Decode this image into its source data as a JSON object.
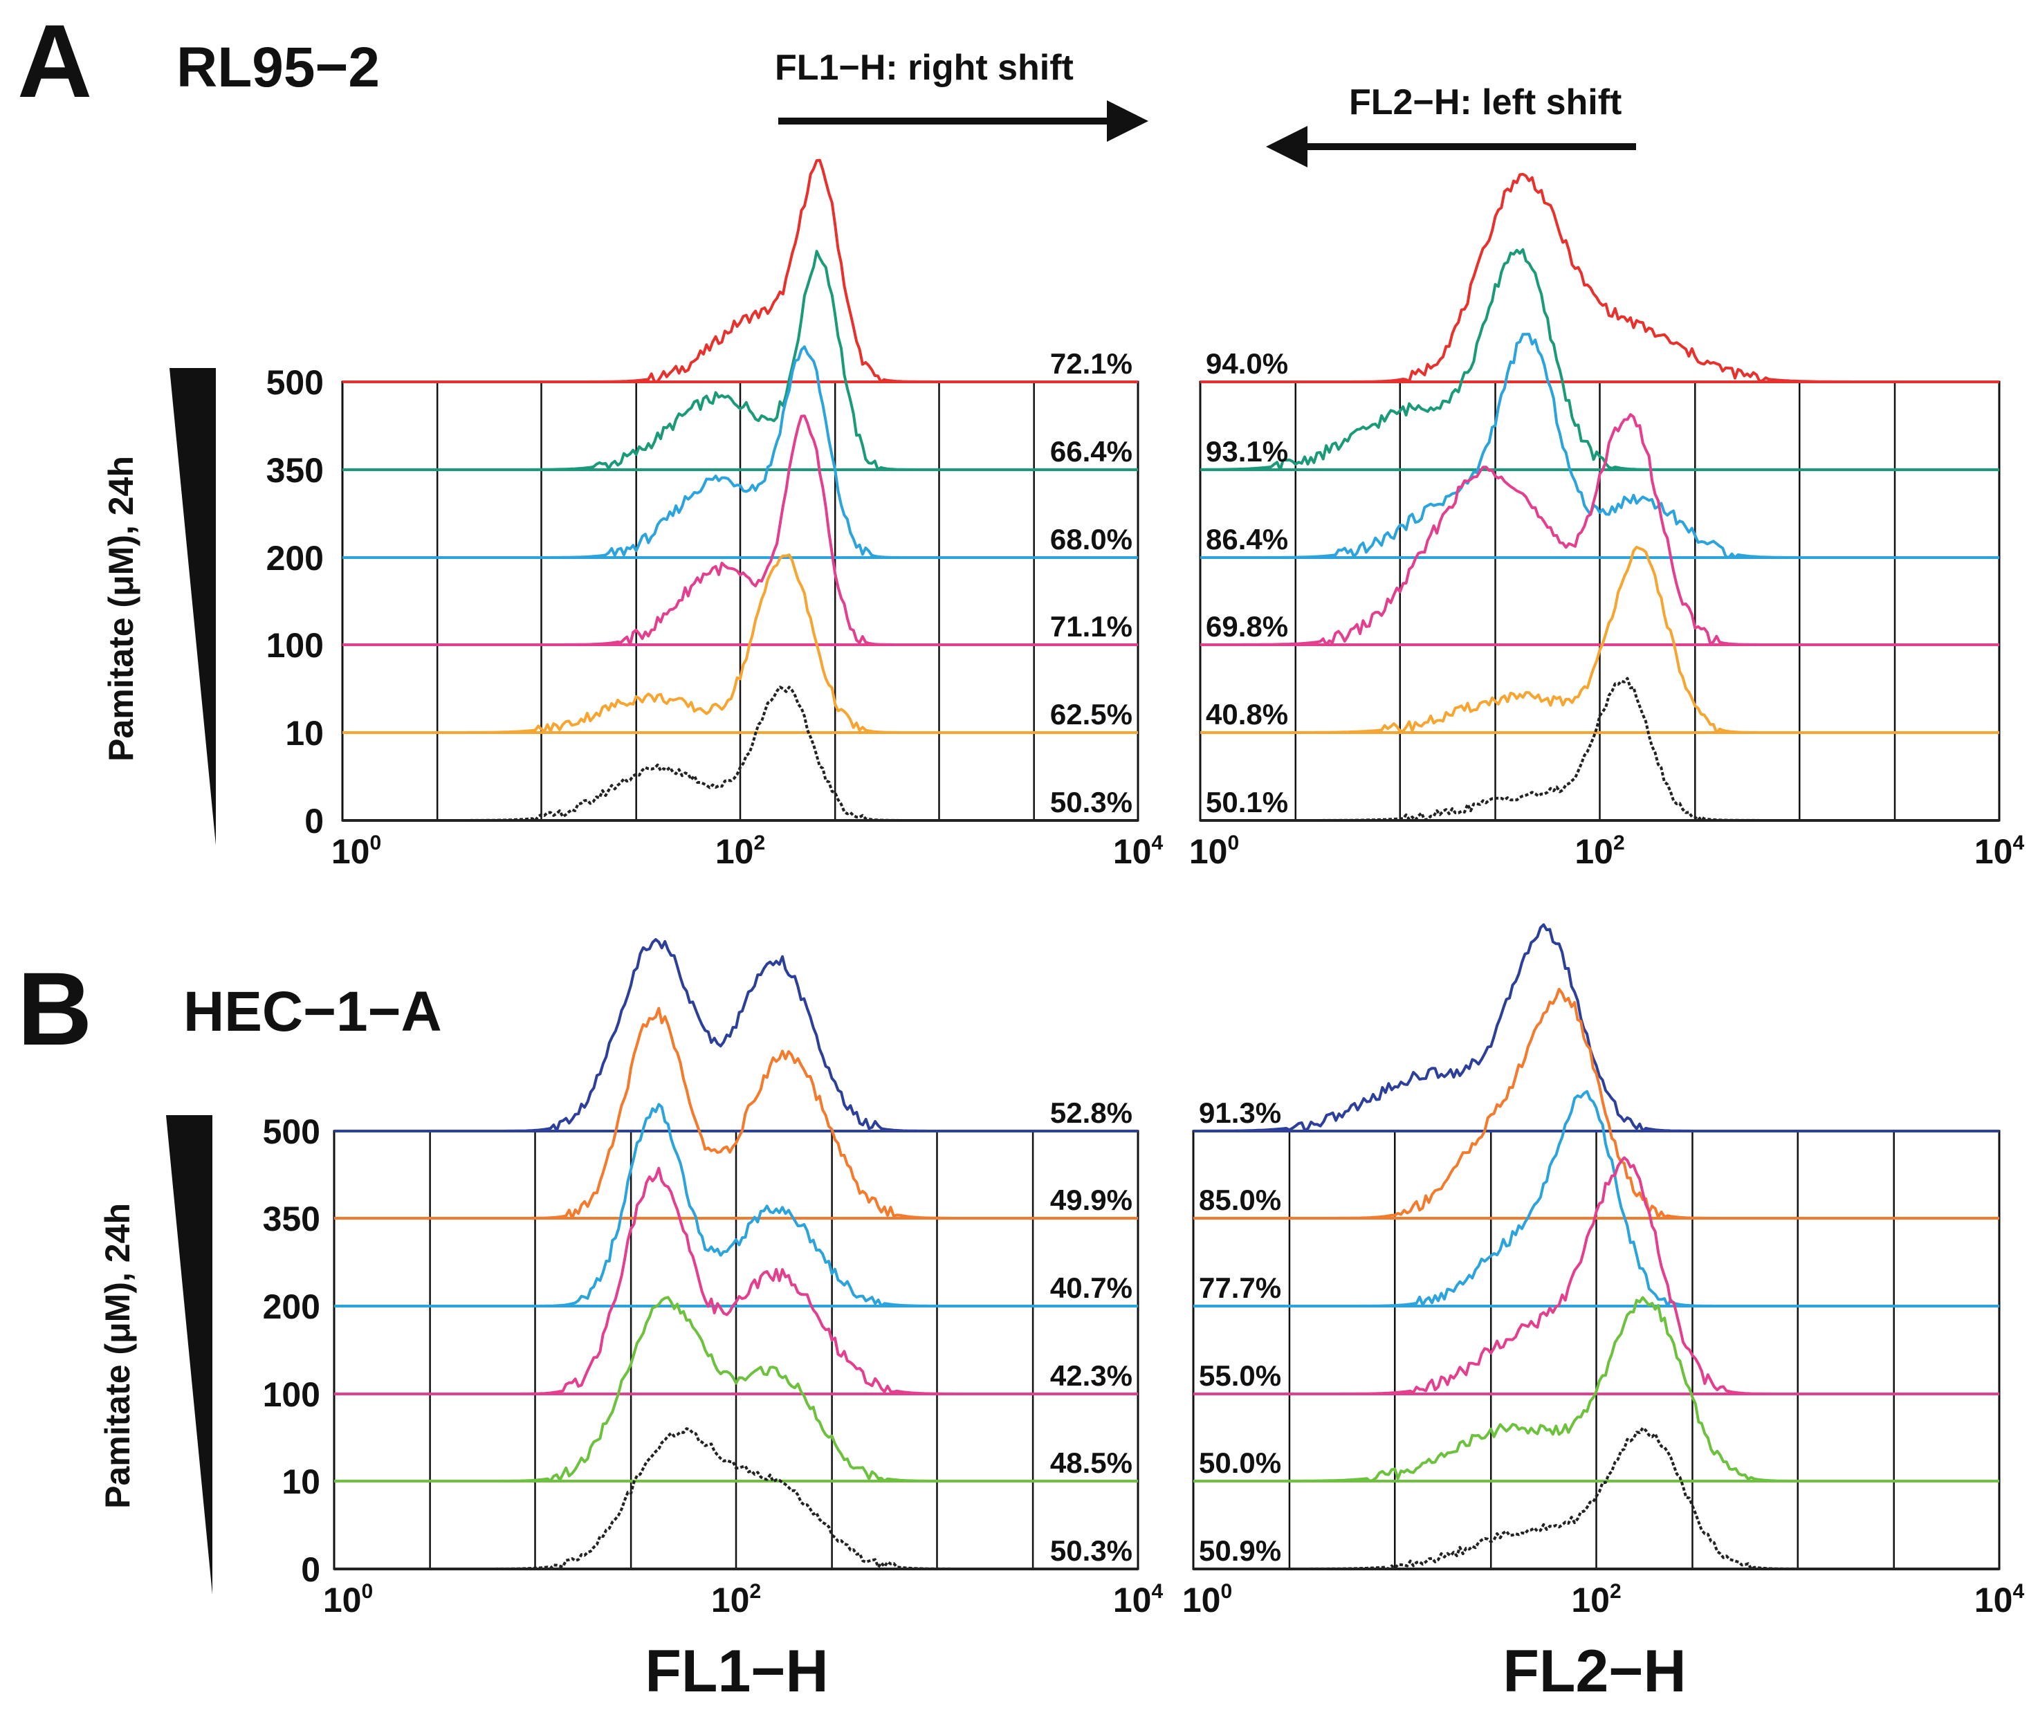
{
  "figure": {
    "x_axis_labels": [
      "FL1−H",
      "FL2−H"
    ],
    "shift_annotations": [
      {
        "text": "FL1−H: right shift",
        "direction": "right"
      },
      {
        "text": "FL2−H: left shift",
        "direction": "left"
      }
    ]
  },
  "chart_data": [
    {
      "type": "histogram-overlay",
      "panel": "A",
      "cell_line": "RL95−2",
      "channel": "FL1−H",
      "ylabel": "Pamitate (μM), 24h",
      "row_labels": [
        "500",
        "350",
        "200",
        "100",
        "10",
        "0"
      ],
      "x_ticks": [
        "10^0",
        "10^2",
        "10^4"
      ],
      "xlim_log10": [
        0,
        4
      ],
      "series": [
        {
          "name": "500",
          "color": "#e8312d",
          "percent": "72.1%",
          "peaks": [
            [
              2.1,
              0.35,
              0.22
            ],
            [
              2.4,
              1.0,
              0.1
            ]
          ]
        },
        {
          "name": "350",
          "color": "#1a9a79",
          "percent": "66.4%",
          "peaks": [
            [
              1.9,
              0.35,
              0.25
            ],
            [
              2.4,
              1.0,
              0.1
            ]
          ]
        },
        {
          "name": "200",
          "color": "#2ba3dc",
          "percent": "68.0%",
          "peaks": [
            [
              1.9,
              0.4,
              0.22
            ],
            [
              2.33,
              1.0,
              0.11
            ]
          ]
        },
        {
          "name": "100",
          "color": "#e43f8f",
          "percent": "71.1%",
          "peaks": [
            [
              1.9,
              0.35,
              0.2
            ],
            [
              2.33,
              1.0,
              0.1
            ]
          ]
        },
        {
          "name": "10",
          "color": "#f7a531",
          "percent": "62.5%",
          "peaks": [
            [
              1.55,
              0.2,
              0.25
            ],
            [
              2.22,
              1.0,
              0.14
            ]
          ]
        },
        {
          "name": "0",
          "color": "#222222",
          "percent": "50.3%",
          "peaks": [
            [
              1.6,
              0.4,
              0.25
            ],
            [
              2.22,
              1.0,
              0.14
            ]
          ]
        }
      ]
    },
    {
      "type": "histogram-overlay",
      "panel": "A",
      "cell_line": "RL95−2",
      "channel": "FL2−H",
      "row_labels": [
        "500",
        "350",
        "200",
        "100",
        "10",
        "0"
      ],
      "x_ticks": [
        "10^0",
        "10^2",
        "10^4"
      ],
      "xlim_log10": [
        0,
        4
      ],
      "series": [
        {
          "name": "500",
          "color": "#e8312d",
          "percent": "94.0%",
          "peaks": [
            [
              1.6,
              1.0,
              0.2
            ],
            [
              2.1,
              0.3,
              0.3
            ]
          ]
        },
        {
          "name": "350",
          "color": "#1a9a79",
          "percent": "93.1%",
          "peaks": [
            [
              1.1,
              0.3,
              0.3
            ],
            [
              1.6,
              1.0,
              0.16
            ]
          ]
        },
        {
          "name": "200",
          "color": "#2ba3dc",
          "percent": "86.4%",
          "peaks": [
            [
              1.3,
              0.3,
              0.25
            ],
            [
              1.65,
              1.0,
              0.14
            ],
            [
              2.2,
              0.3,
              0.2
            ]
          ]
        },
        {
          "name": "100",
          "color": "#e43f8f",
          "percent": "69.8%",
          "peaks": [
            [
              1.45,
              0.8,
              0.3
            ],
            [
              2.15,
              1.0,
              0.15
            ]
          ]
        },
        {
          "name": "10",
          "color": "#f7a531",
          "percent": "40.8%",
          "peaks": [
            [
              1.6,
              0.2,
              0.3
            ],
            [
              2.2,
              1.0,
              0.14
            ]
          ]
        },
        {
          "name": "0",
          "color": "#222222",
          "percent": "50.1%",
          "peaks": [
            [
              1.7,
              0.2,
              0.3
            ],
            [
              2.12,
              1.0,
              0.13
            ]
          ]
        }
      ]
    },
    {
      "type": "histogram-overlay",
      "panel": "B",
      "cell_line": "HEC−1−A",
      "channel": "FL1−H",
      "ylabel": "Pamitate (μM), 24h",
      "row_labels": [
        "500",
        "350",
        "200",
        "100",
        "10",
        "0"
      ],
      "x_ticks": [
        "10^0",
        "10^2",
        "10^4"
      ],
      "xlim_log10": [
        0,
        4
      ],
      "series": [
        {
          "name": "500",
          "color": "#2c3f9a",
          "percent": "52.8%",
          "peaks": [
            [
              1.6,
              1.0,
              0.18
            ],
            [
              2.2,
              0.9,
              0.18
            ]
          ]
        },
        {
          "name": "350",
          "color": "#f47a2c",
          "percent": "49.9%",
          "peaks": [
            [
              1.6,
              1.0,
              0.15
            ],
            [
              2.25,
              0.8,
              0.2
            ]
          ]
        },
        {
          "name": "200",
          "color": "#2ba3dc",
          "percent": "40.7%",
          "peaks": [
            [
              1.6,
              1.0,
              0.14
            ],
            [
              2.2,
              0.5,
              0.2
            ]
          ]
        },
        {
          "name": "100",
          "color": "#e43f8f",
          "percent": "42.3%",
          "peaks": [
            [
              1.6,
              1.0,
              0.16
            ],
            [
              2.2,
              0.55,
              0.22
            ]
          ]
        },
        {
          "name": "10",
          "color": "#6cc13d",
          "percent": "48.5%",
          "peaks": [
            [
              1.65,
              1.0,
              0.2
            ],
            [
              2.2,
              0.6,
              0.2
            ]
          ]
        },
        {
          "name": "0",
          "color": "#222222",
          "percent": "50.3%",
          "peaks": [
            [
              1.7,
              1.0,
              0.22
            ],
            [
              2.2,
              0.6,
              0.22
            ]
          ]
        }
      ]
    },
    {
      "type": "histogram-overlay",
      "panel": "B",
      "cell_line": "HEC−1−A",
      "channel": "FL2−H",
      "row_labels": [
        "500",
        "350",
        "200",
        "100",
        "10",
        "0"
      ],
      "x_ticks": [
        "10^0",
        "10^2",
        "10^4"
      ],
      "xlim_log10": [
        0,
        4
      ],
      "series": [
        {
          "name": "500",
          "color": "#2c3f9a",
          "percent": "91.3%",
          "peaks": [
            [
              1.2,
              0.3,
              0.3
            ],
            [
              1.75,
              1.0,
              0.17
            ]
          ]
        },
        {
          "name": "350",
          "color": "#f47a2c",
          "percent": "85.0%",
          "peaks": [
            [
              1.5,
              0.4,
              0.2
            ],
            [
              1.85,
              1.0,
              0.17
            ]
          ]
        },
        {
          "name": "200",
          "color": "#2ba3dc",
          "percent": "77.7%",
          "peaks": [
            [
              1.6,
              0.3,
              0.2
            ],
            [
              1.95,
              1.0,
              0.15
            ]
          ]
        },
        {
          "name": "100",
          "color": "#e43f8f",
          "percent": "55.0%",
          "peaks": [
            [
              1.7,
              0.3,
              0.25
            ],
            [
              2.15,
              1.0,
              0.17
            ]
          ]
        },
        {
          "name": "10",
          "color": "#6cc13d",
          "percent": "50.0%",
          "peaks": [
            [
              1.6,
              0.3,
              0.3
            ],
            [
              2.25,
              1.0,
              0.18
            ]
          ]
        },
        {
          "name": "0",
          "color": "#222222",
          "percent": "50.9%",
          "peaks": [
            [
              1.7,
              0.3,
              0.3
            ],
            [
              2.25,
              1.0,
              0.18
            ]
          ]
        }
      ]
    }
  ]
}
